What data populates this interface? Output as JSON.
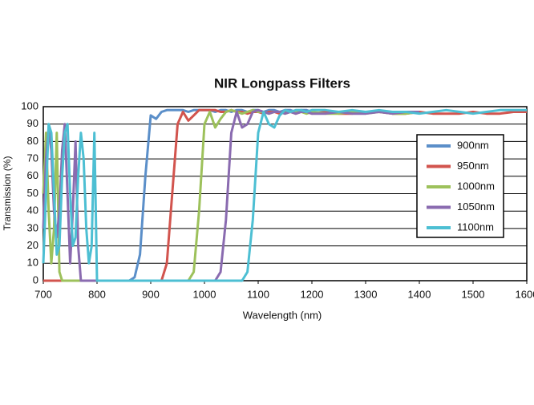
{
  "chart_data": {
    "type": "line",
    "title": "NIR Longpass Filters",
    "x_label": "Wavelength (nm)",
    "y_label": "Transmission (%)",
    "x": [
      700,
      705,
      710,
      715,
      720,
      725,
      730,
      735,
      740,
      745,
      750,
      755,
      760,
      765,
      770,
      775,
      780,
      785,
      790,
      795,
      800,
      810,
      820,
      830,
      840,
      850,
      860,
      870,
      880,
      890,
      900,
      910,
      920,
      930,
      940,
      950,
      960,
      970,
      980,
      990,
      1000,
      1010,
      1020,
      1030,
      1040,
      1050,
      1060,
      1070,
      1080,
      1090,
      1100,
      1110,
      1120,
      1130,
      1140,
      1150,
      1160,
      1170,
      1180,
      1190,
      1200,
      1225,
      1250,
      1275,
      1300,
      1325,
      1350,
      1375,
      1400,
      1425,
      1450,
      1475,
      1500,
      1525,
      1550,
      1575,
      1600
    ],
    "series": [
      {
        "name": "900nm",
        "color": "#5b8fc9",
        "values": [
          0,
          0,
          0,
          0,
          0,
          0,
          0,
          0,
          0,
          0,
          0,
          0,
          0,
          0,
          0,
          0,
          0,
          0,
          0,
          0,
          0,
          0,
          0,
          0,
          0,
          0,
          0,
          2,
          15,
          60,
          95,
          93,
          97,
          98,
          98,
          98,
          98,
          97,
          98,
          98,
          98,
          98,
          97,
          98,
          98,
          97,
          98,
          98,
          97,
          98,
          98,
          97,
          98,
          98,
          97,
          98,
          98,
          97,
          98,
          98,
          97,
          null,
          null,
          null,
          null,
          null,
          null,
          null,
          null,
          null,
          null,
          null,
          null,
          null,
          null,
          null,
          null
        ]
      },
      {
        "name": "950nm",
        "color": "#d2544e",
        "values": [
          0,
          0,
          0,
          0,
          0,
          0,
          0,
          0,
          0,
          0,
          0,
          0,
          0,
          0,
          0,
          0,
          0,
          0,
          0,
          0,
          0,
          0,
          0,
          0,
          0,
          0,
          0,
          0,
          0,
          0,
          0,
          0,
          0,
          10,
          50,
          90,
          97,
          92,
          95,
          98,
          98,
          98,
          98,
          97,
          97,
          98,
          97,
          97,
          96,
          97,
          97,
          96,
          97,
          97,
          96,
          97,
          97,
          96,
          97,
          97,
          96,
          97,
          96,
          96,
          97,
          97,
          96,
          96,
          97,
          96,
          96,
          96,
          97,
          96,
          96,
          97,
          97
        ]
      },
      {
        "name": "1000nm",
        "color": "#9dc15b",
        "values": [
          50,
          85,
          40,
          10,
          30,
          85,
          5,
          0,
          0,
          0,
          0,
          0,
          0,
          0,
          0,
          0,
          0,
          0,
          0,
          0,
          0,
          0,
          0,
          0,
          0,
          0,
          0,
          0,
          0,
          0,
          0,
          0,
          0,
          0,
          0,
          0,
          0,
          0,
          5,
          40,
          90,
          97,
          88,
          93,
          97,
          98,
          97,
          96,
          97,
          98,
          97,
          97,
          96,
          97,
          97,
          96,
          97,
          97,
          97,
          96,
          97,
          96,
          96,
          97,
          96,
          97,
          96,
          96,
          97,
          null,
          null,
          null,
          null,
          null,
          null,
          null,
          null
        ]
      },
      {
        "name": "1050nm",
        "color": "#8a6bb0",
        "values": [
          30,
          70,
          88,
          75,
          40,
          25,
          40,
          75,
          90,
          50,
          10,
          40,
          80,
          20,
          0,
          0,
          0,
          0,
          0,
          0,
          0,
          0,
          0,
          0,
          0,
          0,
          0,
          0,
          0,
          0,
          0,
          0,
          0,
          0,
          0,
          0,
          0,
          0,
          0,
          0,
          0,
          0,
          0,
          5,
          35,
          85,
          97,
          88,
          90,
          97,
          98,
          97,
          96,
          97,
          97,
          96,
          97,
          96,
          97,
          97,
          96,
          96,
          97,
          96,
          96,
          97,
          96,
          97,
          97,
          null,
          null,
          null,
          null,
          null,
          null,
          null,
          null
        ]
      },
      {
        "name": "1100nm",
        "color": "#4dbfd3",
        "values": [
          10,
          50,
          90,
          85,
          50,
          15,
          20,
          60,
          85,
          90,
          50,
          20,
          25,
          60,
          85,
          70,
          30,
          10,
          20,
          85,
          0,
          0,
          0,
          0,
          0,
          0,
          0,
          0,
          0,
          0,
          0,
          0,
          0,
          0,
          0,
          0,
          0,
          0,
          0,
          0,
          0,
          0,
          0,
          0,
          0,
          0,
          0,
          0,
          5,
          35,
          85,
          97,
          90,
          88,
          95,
          98,
          97,
          98,
          98,
          97,
          98,
          98,
          97,
          98,
          97,
          98,
          97,
          97,
          96,
          97,
          98,
          97,
          96,
          97,
          98,
          98,
          98
        ]
      }
    ],
    "xlim": [
      700,
      1600
    ],
    "xticks": [
      700,
      800,
      900,
      1000,
      1100,
      1200,
      1300,
      1400,
      1500,
      1600
    ],
    "ylim": [
      0,
      100
    ],
    "yticks": [
      0,
      10,
      20,
      30,
      40,
      50,
      60,
      70,
      80,
      90,
      100
    ],
    "grid": true,
    "legend": "right"
  }
}
